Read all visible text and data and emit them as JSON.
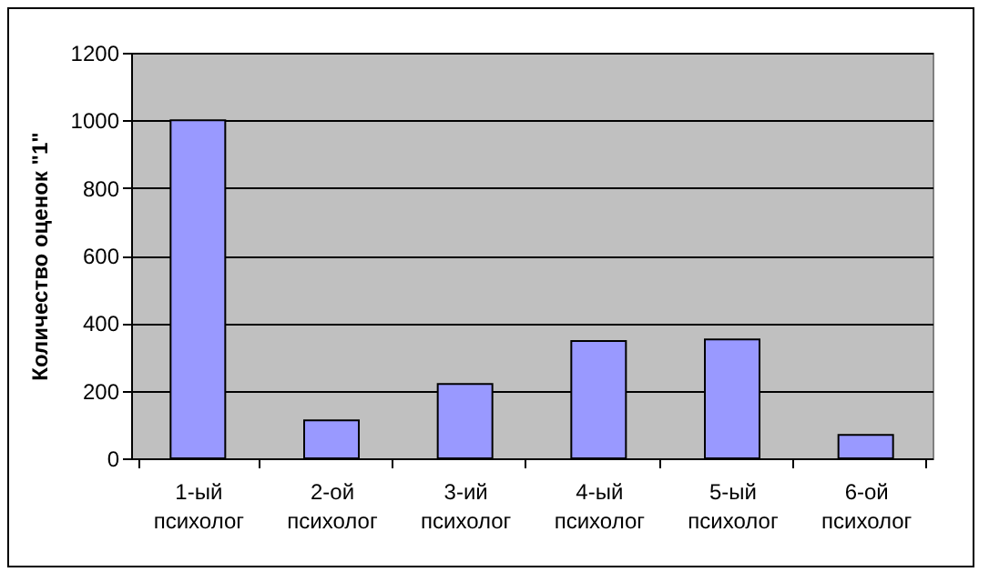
{
  "chart_data": {
    "type": "bar",
    "ylabel": "Количество оценок \"1\"",
    "categories": [
      "1-ый психолог",
      "2-ой психолог",
      "3-ий психолог",
      "4-ый психолог",
      "5-ый психолог",
      "6-ой психолог"
    ],
    "values": [
      1000,
      112,
      220,
      347,
      352,
      69
    ],
    "color": "#9999ff",
    "ylim": [
      0,
      1200
    ],
    "yticks": [
      0,
      200,
      400,
      600,
      800,
      1000,
      1200
    ],
    "grid": "y"
  }
}
